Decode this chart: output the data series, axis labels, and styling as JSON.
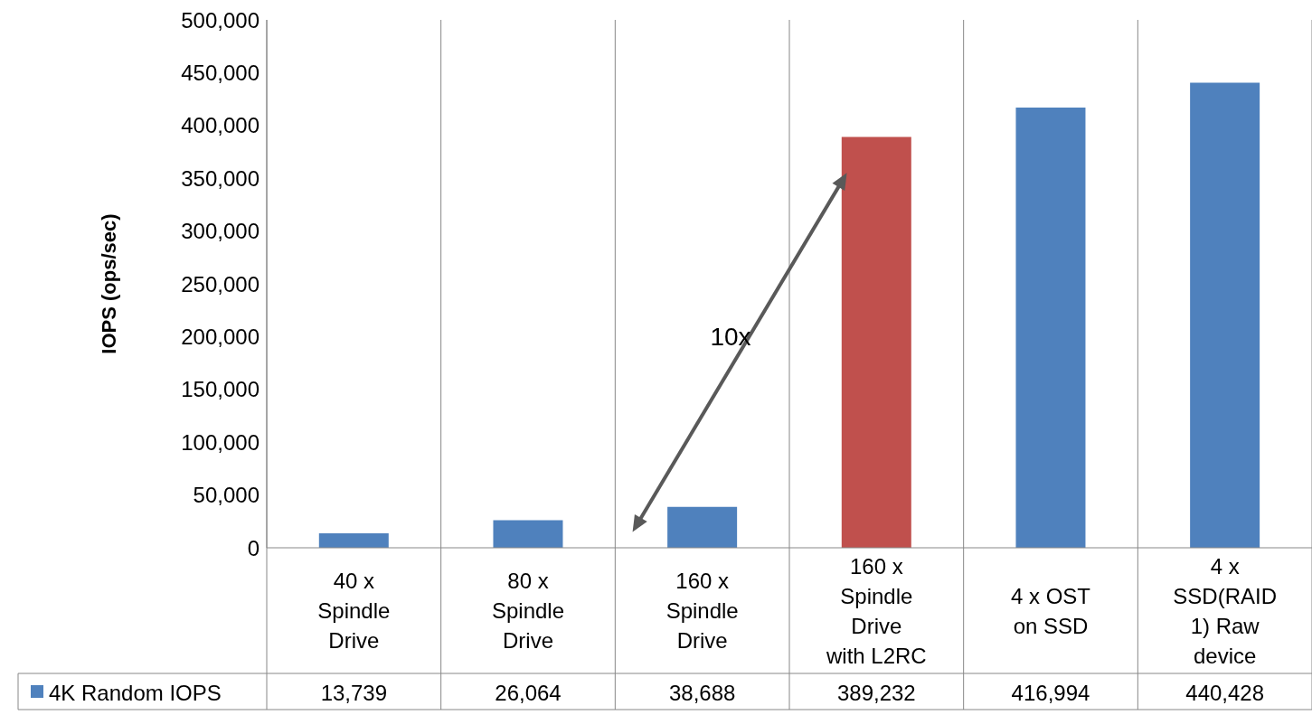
{
  "chart_data": {
    "type": "bar",
    "ylabel": "IOPS (ops/sec)",
    "categories": [
      "40 x Spindle Drive",
      "80 x Spindle Drive",
      "160 x Spindle Drive",
      "160 x Spindle Drive with L2RC",
      "4 x OST on SSD",
      "4 x SSD(RAID 1) Raw device"
    ],
    "series": [
      {
        "name": "4K Random IOPS",
        "color": "#4f81bd",
        "colors": [
          "#4f81bd",
          "#4f81bd",
          "#4f81bd",
          "#c0504d",
          "#4f81bd",
          "#4f81bd"
        ],
        "values": [
          13739,
          26064,
          38688,
          389232,
          416994,
          440428
        ],
        "value_labels": [
          "13,739",
          "26,064",
          "38,688",
          "389,232",
          "416,994",
          "440,428"
        ]
      }
    ],
    "ylim": [
      0,
      500000
    ],
    "yticks": [
      0,
      {
        "value": 50000,
        "label": "50,000"
      },
      {
        "value": 100000,
        "label": "100,000"
      },
      {
        "value": 150000,
        "label": "150,000"
      },
      {
        "value": 200000,
        "label": "200,000"
      },
      {
        "value": 250000,
        "label": "250,000"
      },
      {
        "value": 300000,
        "label": "300,000"
      },
      {
        "value": 350000,
        "label": "350,000"
      },
      {
        "value": 400000,
        "label": "400,000"
      },
      {
        "value": 450000,
        "label": "450,000"
      },
      {
        "value": 500000,
        "label": "500,000"
      }
    ],
    "grid": "x",
    "legend": "bottom left",
    "annotations": [
      "10x"
    ]
  }
}
